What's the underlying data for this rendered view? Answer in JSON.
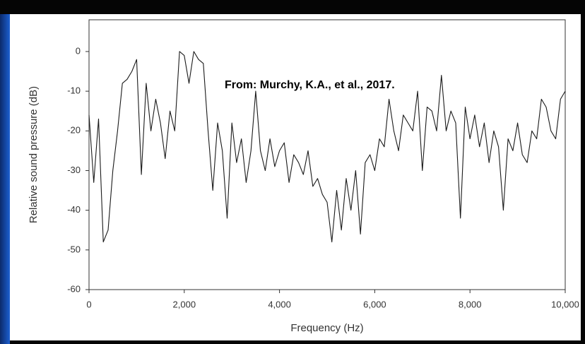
{
  "chart_data": {
    "type": "line",
    "annotation": "From: Murchy, K.A., et al., 2017.",
    "xlabel": "Frequency (Hz)",
    "ylabel": "Relative sound pressure (dB)",
    "xlim": [
      0,
      10000
    ],
    "xticks": [
      0,
      {
        "value": 2000,
        "label": "2,000"
      },
      {
        "value": 4000,
        "label": "4,000"
      },
      {
        "value": 6000,
        "label": "6,000"
      },
      {
        "value": 8000,
        "label": "8,000"
      },
      {
        "value": 10000,
        "label": "10,000"
      }
    ],
    "ylim": [
      -60,
      8
    ],
    "yticks": [
      -60,
      -50,
      -40,
      -30,
      -20,
      -10,
      0
    ],
    "grid": false,
    "series": [
      {
        "color": "#1a1a1a",
        "x": [
          0,
          100,
          200,
          300,
          400,
          500,
          600,
          700,
          800,
          900,
          1000,
          1100,
          1200,
          1300,
          1400,
          1500,
          1600,
          1700,
          1800,
          1900,
          2000,
          2100,
          2200,
          2300,
          2400,
          2500,
          2600,
          2700,
          2800,
          2900,
          3000,
          3100,
          3200,
          3300,
          3400,
          3500,
          3600,
          3700,
          3800,
          3900,
          4000,
          4100,
          4200,
          4300,
          4400,
          4500,
          4600,
          4700,
          4800,
          4900,
          5000,
          5100,
          5200,
          5300,
          5400,
          5500,
          5600,
          5700,
          5800,
          5900,
          6000,
          6100,
          6200,
          6300,
          6400,
          6500,
          6600,
          6700,
          6800,
          6900,
          7000,
          7100,
          7200,
          7300,
          7400,
          7500,
          7600,
          7700,
          7800,
          7900,
          8000,
          8100,
          8200,
          8300,
          8400,
          8500,
          8600,
          8700,
          8800,
          8900,
          9000,
          9100,
          9200,
          9300,
          9400,
          9500,
          9600,
          9700,
          9800,
          9900,
          10000
        ],
        "values": [
          -16,
          -33,
          -17,
          -48,
          -45,
          -30,
          -20,
          -8,
          -7,
          -5,
          -2,
          -31,
          -8,
          -20,
          -12,
          -18,
          -27,
          -15,
          -20,
          0,
          -1,
          -8,
          0,
          -2,
          -3,
          -20,
          -35,
          -18,
          -25,
          -42,
          -18,
          -28,
          -22,
          -33,
          -25,
          -10,
          -25,
          -30,
          -22,
          -29,
          -25,
          -23,
          -33,
          -26,
          -28,
          -31,
          -25,
          -34,
          -32,
          -36,
          -38,
          -48,
          -35,
          -45,
          -32,
          -40,
          -30,
          -46,
          -28,
          -26,
          -30,
          -22,
          -24,
          -12,
          -20,
          -25,
          -16,
          -18,
          -20,
          -10,
          -30,
          -14,
          -15,
          -20,
          -6,
          -20,
          -15,
          -18,
          -42,
          -14,
          -22,
          -16,
          -24,
          -18,
          -28,
          -20,
          -24,
          -40,
          -22,
          -25,
          -18,
          -26,
          -28,
          -20,
          -22,
          -12,
          -14,
          -20,
          -22,
          -12,
          -10
        ]
      }
    ]
  }
}
